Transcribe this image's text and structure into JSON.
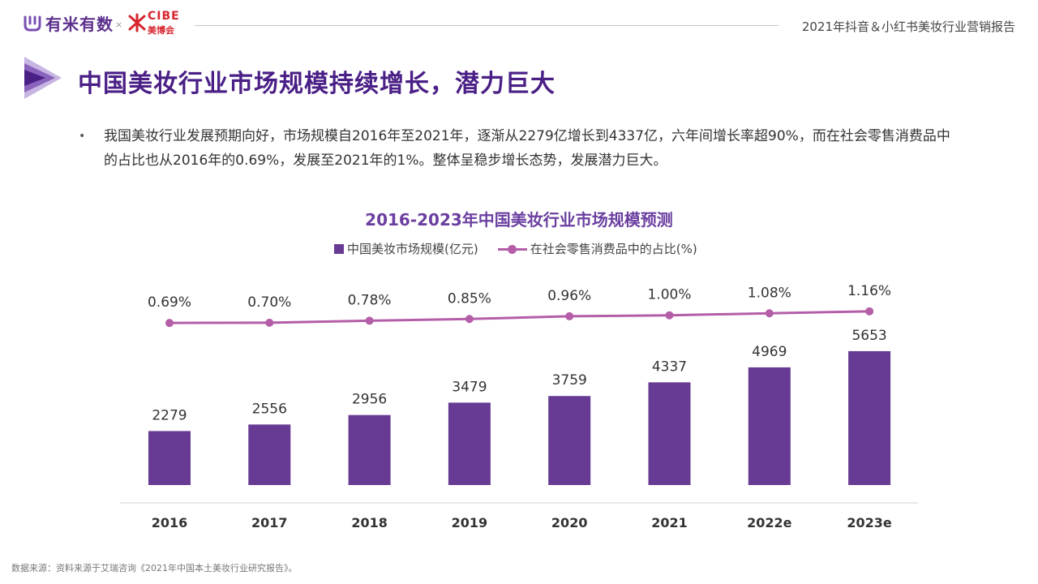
{
  "header": {
    "logo_youmi": "有米有数",
    "logo_sep": "×",
    "logo_cibe": "CIBE",
    "logo_cibe_cn": "美博会",
    "report_title": "2021年抖音＆小红书美妆行业营销报告"
  },
  "page_title": "中国美妆行业市场规模持续增长，潜力巨大",
  "bullet": "我国美妆行业发展预期向好，市场规模自2016年至2021年，逐渐从2279亿增长到4337亿，六年间增长率超90%，而在社会零售消费品中的占比也从2016年的0.69%，发展至2021年的1%。整体呈稳步增长态势，发展潜力巨大。",
  "colors": {
    "bar": "#673a94",
    "line": "#b45ea8",
    "title": "#4a1f86"
  },
  "chart_data": {
    "type": "bar",
    "title": "2016-2023年中国美妆行业市场规模预测",
    "categories": [
      "2016",
      "2017",
      "2018",
      "2019",
      "2020",
      "2021",
      "2022e",
      "2023e"
    ],
    "series": [
      {
        "name": "中国美妆市场规模(亿元)",
        "type": "bar",
        "values": [
          2279,
          2556,
          2956,
          3479,
          3759,
          4337,
          4969,
          5653
        ]
      },
      {
        "name": "在社会零售消费品中的占比(%)",
        "type": "line",
        "values": [
          0.69,
          0.7,
          0.78,
          0.85,
          0.96,
          1.0,
          1.08,
          1.16
        ],
        "labels": [
          "0.69%",
          "0.70%",
          "0.78%",
          "0.85%",
          "0.96%",
          "1.00%",
          "1.08%",
          "1.16%"
        ]
      }
    ],
    "legend_position": "top",
    "grid": false
  },
  "footnote": "数据来源：资料来源于艾瑞咨询《2021年中国本土美妆行业研究报告》。"
}
